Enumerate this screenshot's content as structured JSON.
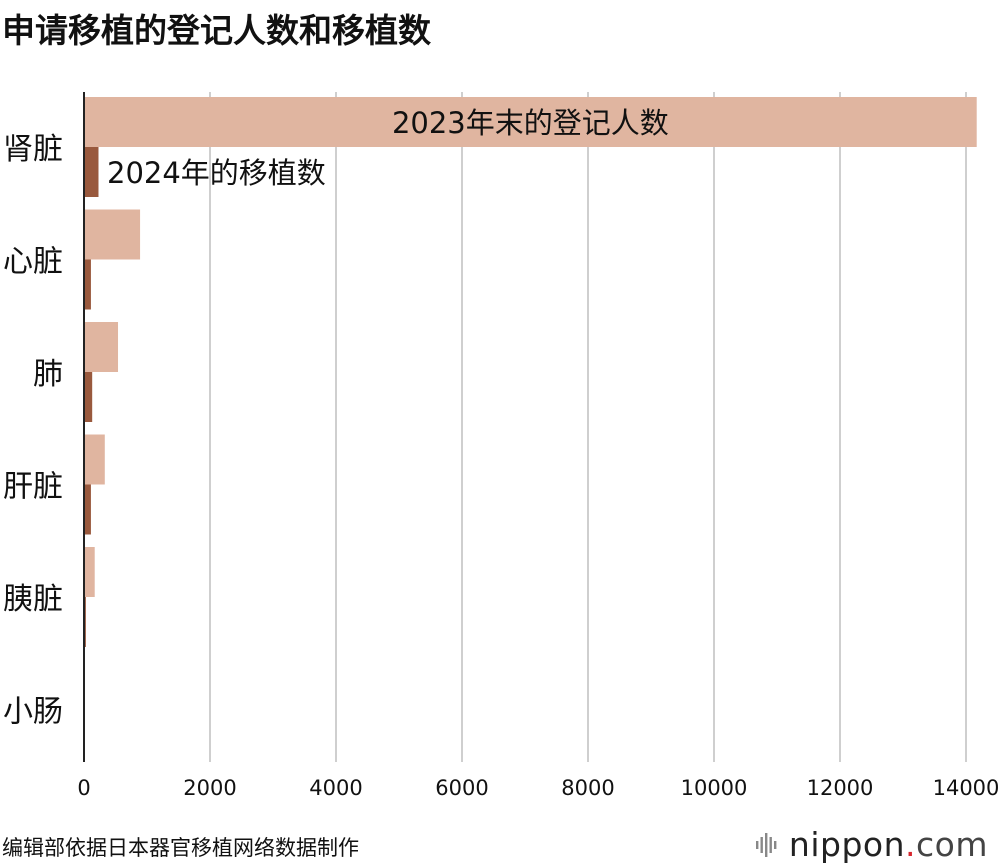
{
  "header": {
    "title": "申请移植的登记人数和移植数"
  },
  "footer": {
    "source": "编辑部依据日本器官移植网络数据制作",
    "brand_name": "nippon",
    "brand_dot": ".",
    "brand_suffix": "com"
  },
  "colors": {
    "registered": "#e0b5a0",
    "transplants": "#99593d",
    "grid": "#cfcfcf",
    "axis": "#222222"
  },
  "chart_data": {
    "type": "bar",
    "orientation": "horizontal",
    "title": "申请移植的登记人数和移植数",
    "categories": [
      "肾脏",
      "心脏",
      "肺",
      "肝脏",
      "胰脏",
      "小肠"
    ],
    "series": [
      {
        "name": "2023年末的登记人数",
        "values": [
          14170,
          890,
          540,
          330,
          170,
          5
        ]
      },
      {
        "name": "2024年的移植数",
        "values": [
          230,
          110,
          130,
          110,
          30,
          2
        ]
      }
    ],
    "xlim": [
      0,
      14000
    ],
    "ticks": [
      0,
      2000,
      4000,
      6000,
      8000,
      10000,
      12000,
      14000
    ],
    "grid": true,
    "legend": "inline-labels"
  }
}
